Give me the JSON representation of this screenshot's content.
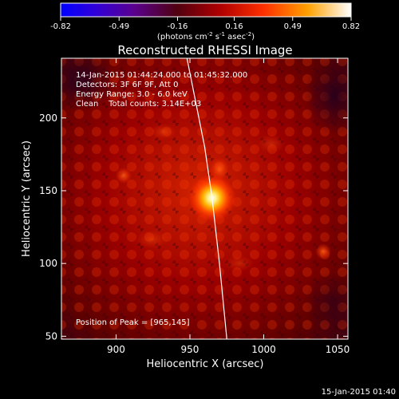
{
  "colorbar": {
    "ticks": [
      "-0.82",
      "-0.49",
      "-0.16",
      "0.16",
      "0.49",
      "0.82"
    ],
    "range": [
      -0.82,
      0.82
    ],
    "units_prefix": "(photons cm",
    "units_sup1": "-2",
    "units_mid": " s",
    "units_sup2": "-1",
    "units_end": " asec",
    "units_sup3": "-2",
    "units_close": ")"
  },
  "chart_data": {
    "type": "heatmap",
    "title": "Reconstructed RHESSI Image",
    "xlabel": "Heliocentric X (arcsec)",
    "ylabel": "Heliocentric Y (arcsec)",
    "xlim": [
      863,
      1057
    ],
    "ylim": [
      48,
      241
    ],
    "x_ticks": [
      900,
      950,
      1000,
      1050
    ],
    "y_ticks": [
      50,
      100,
      150,
      200
    ],
    "peak": {
      "x": 965,
      "y": 145
    },
    "limb_x_at_y": [
      [
        948,
        241
      ],
      [
        960,
        180
      ],
      [
        965,
        145
      ],
      [
        970,
        100
      ],
      [
        975,
        48
      ]
    ],
    "annotations": [
      "14-Jan-2015 01:44:24.000 to 01:45:32.000",
      "Detectors: 3F 6F 9F, Att 0",
      "Energy Range: 3.0 - 6.0 keV",
      "Clean    Total counts: 3.14E+03"
    ],
    "peak_label": "Position of Peak = [965,145]"
  },
  "footer": {
    "date": "15-Jan-2015 01:40"
  }
}
